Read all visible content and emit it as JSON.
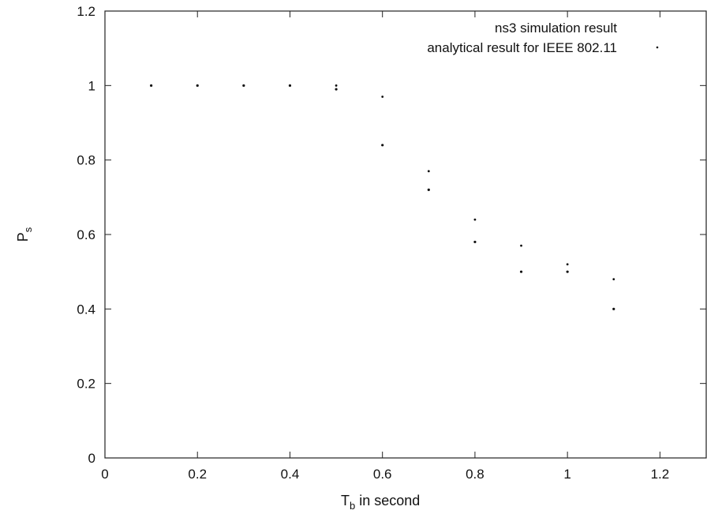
{
  "chart_data": {
    "type": "scatter",
    "title": "",
    "xlabel_main": "T",
    "xlabel_sub": "b",
    "xlabel_rest": " in second",
    "ylabel_main": "P",
    "ylabel_sub": "s",
    "xlim": [
      0,
      1.3
    ],
    "ylim": [
      0,
      1.2
    ],
    "x_ticks": [
      0,
      0.2,
      0.4,
      0.6,
      0.8,
      1,
      1.2
    ],
    "x_tick_labels": [
      "0",
      "0.2",
      "0.4",
      "0.6",
      "0.8",
      "1",
      "1.2"
    ],
    "y_ticks": [
      0,
      0.2,
      0.4,
      0.6,
      0.8,
      1,
      1.2
    ],
    "y_tick_labels": [
      "0",
      "0.2",
      "0.4",
      "0.6",
      "0.8",
      "1",
      "1.2"
    ],
    "grid": false,
    "legend_position": "top-right",
    "series": [
      {
        "name": "ns3 simulation result",
        "points": [
          [
            0.5,
            1.0
          ],
          [
            0.6,
            0.97
          ],
          [
            0.7,
            0.77
          ],
          [
            0.8,
            0.64
          ],
          [
            0.9,
            0.57
          ],
          [
            1.0,
            0.52
          ],
          [
            1.1,
            0.48
          ]
        ]
      },
      {
        "name": "analytical result for IEEE 802.11",
        "points": [
          [
            0.1,
            1.0
          ],
          [
            0.2,
            1.0
          ],
          [
            0.3,
            1.0
          ],
          [
            0.4,
            1.0
          ],
          [
            0.5,
            0.99
          ],
          [
            0.6,
            0.84
          ],
          [
            0.7,
            0.72
          ],
          [
            0.8,
            0.58
          ],
          [
            0.9,
            0.5
          ],
          [
            1.0,
            0.5
          ],
          [
            1.1,
            0.4
          ]
        ]
      }
    ]
  }
}
